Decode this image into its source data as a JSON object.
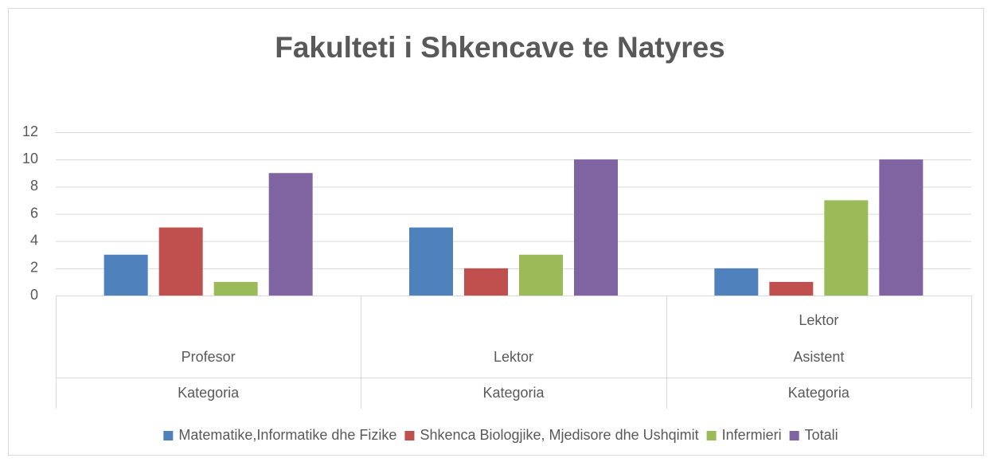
{
  "chart_data": {
    "type": "bar",
    "title": "Fakulteti  i Shkencave te Natyres",
    "categories": [
      [
        "Profesor"
      ],
      [
        "Lektor"
      ],
      [
        "Lektor",
        "Asistent"
      ]
    ],
    "category_groups": [
      "Kategoria",
      "Kategoria",
      "Kategoria"
    ],
    "series": [
      {
        "name": "Matematike,Informatike dhe Fizike",
        "color": "#4f81bd",
        "values": [
          3,
          5,
          2
        ]
      },
      {
        "name": "Shkenca Biologjike, Mjedisore dhe Ushqimit",
        "color": "#c0504d",
        "values": [
          5,
          2,
          1
        ]
      },
      {
        "name": "Infermieri",
        "color": "#9bbb59",
        "values": [
          1,
          3,
          7
        ]
      },
      {
        "name": "Totali",
        "color": "#8064a2",
        "values": [
          9,
          10,
          10
        ]
      }
    ],
    "ylim": [
      0,
      12
    ],
    "yticks": [
      0,
      2,
      4,
      6,
      8,
      10,
      12
    ],
    "grid": true,
    "legend": "bottom"
  }
}
